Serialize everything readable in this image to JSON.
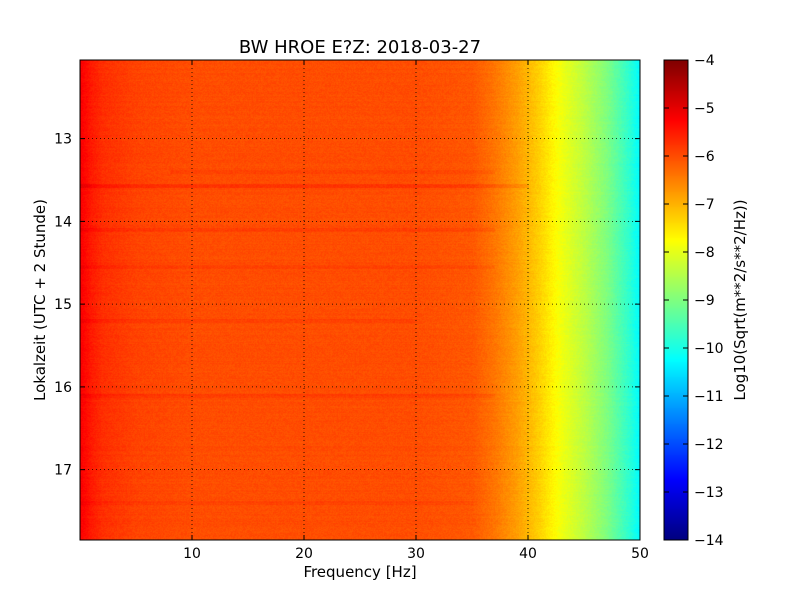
{
  "chart_data": {
    "type": "heatmap",
    "title": "BW HROE E?Z: 2018-03-27",
    "xlabel": "Frequency [Hz]",
    "ylabel": "Lokalzeit (UTC + 2 Stunde)",
    "xlim": [
      0,
      50
    ],
    "ylim": [
      17.85,
      12.05
    ],
    "x_ticks": [
      10,
      20,
      30,
      40,
      50
    ],
    "y_ticks": [
      13,
      14,
      15,
      16,
      17
    ],
    "grid": true,
    "colorbar": {
      "label": "Log10(Sqrt(m**2/s**2/Hz))",
      "range": [
        -14,
        -4
      ],
      "ticks": [
        -4,
        -5,
        -6,
        -7,
        -8,
        -9,
        -10,
        -11,
        -12,
        -13,
        -14
      ],
      "colormap": "jet"
    },
    "profile": {
      "frequency_hz": [
        0,
        1,
        2,
        5,
        10,
        20,
        30,
        35,
        37,
        39,
        41,
        43,
        45,
        47,
        49,
        50
      ],
      "value": [
        -5.2,
        -5.5,
        -5.7,
        -5.9,
        -6.0,
        -6.0,
        -6.0,
        -6.1,
        -6.4,
        -6.8,
        -7.3,
        -7.9,
        -8.4,
        -9.0,
        -9.8,
        -10.3
      ]
    },
    "bands": [
      {
        "time": 13.57,
        "f_from": 0,
        "f_to": 40,
        "delta": 0.25
      },
      {
        "time": 14.1,
        "f_from": 0,
        "f_to": 37,
        "delta": 0.15
      },
      {
        "time": 13.4,
        "f_from": 8,
        "f_to": 37,
        "delta": 0.12
      },
      {
        "time": 16.1,
        "f_from": 0,
        "f_to": 37,
        "delta": 0.15
      },
      {
        "time": 14.55,
        "f_from": 0,
        "f_to": 37,
        "delta": 0.12
      },
      {
        "time": 15.2,
        "f_from": 0,
        "f_to": 30,
        "delta": 0.12
      },
      {
        "time": 17.4,
        "f_from": 0,
        "f_to": 35,
        "delta": 0.1
      }
    ]
  }
}
